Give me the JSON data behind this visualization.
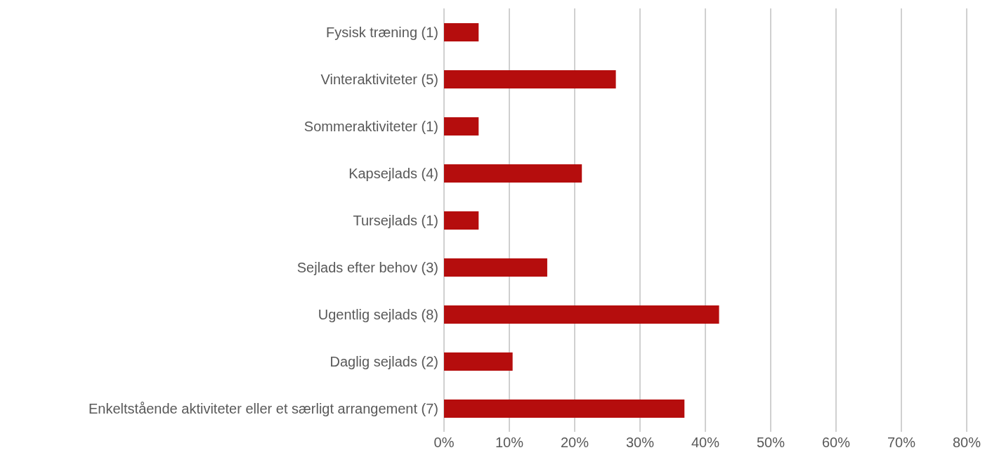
{
  "chart_data": {
    "type": "bar",
    "orientation": "horizontal",
    "categories": [
      "Fysisk træning (1)",
      "Vinteraktiviteter (5)",
      "Sommeraktiviteter (1)",
      "Kapsejlads (4)",
      "Tursejlads (1)",
      "Sejlads efter behov (3)",
      "Ugentlig sejlads (8)",
      "Daglig sejlads (2)",
      "Enkeltstående aktiviteter eller et særligt arrangement (7)"
    ],
    "values": [
      5.3,
      26.3,
      5.3,
      21.1,
      5.3,
      15.8,
      42.1,
      10.5,
      36.8
    ],
    "color": "#b50d0d",
    "xlim": [
      0,
      80
    ],
    "xticks": [
      {
        "value": 0,
        "label": "0%"
      },
      {
        "value": 10,
        "label": "10%"
      },
      {
        "value": 20,
        "label": "20%"
      },
      {
        "value": 30,
        "label": "30%"
      },
      {
        "value": 40,
        "label": "40%"
      },
      {
        "value": 50,
        "label": "50%"
      },
      {
        "value": 60,
        "label": "60%"
      },
      {
        "value": 70,
        "label": "70%"
      },
      {
        "value": 80,
        "label": "80%"
      }
    ],
    "grid": "x",
    "legend": false
  }
}
